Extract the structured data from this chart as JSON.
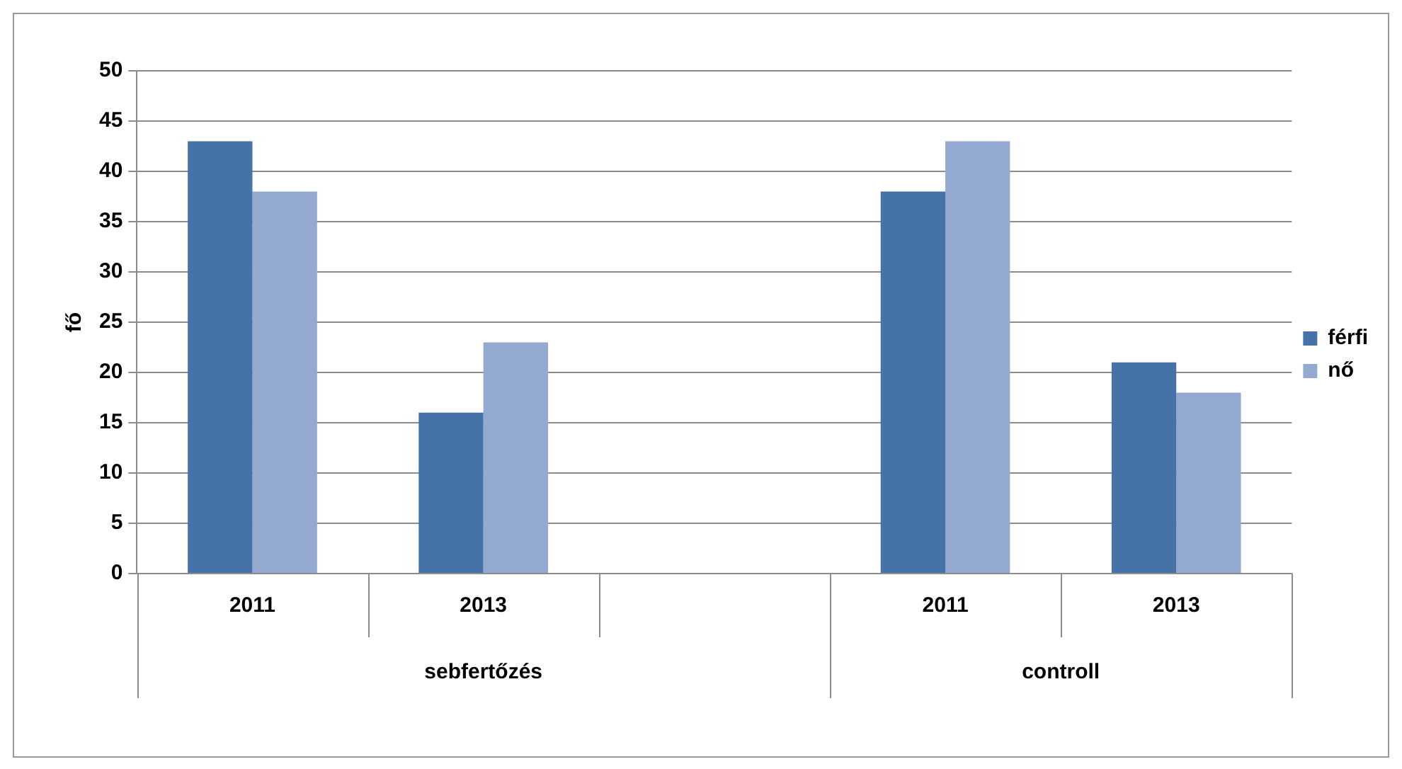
{
  "chart_data": {
    "type": "bar",
    "ylabel": "fő",
    "categories": [
      "2011",
      "2013",
      null,
      "2011",
      "2013"
    ],
    "series": [
      {
        "name": "férfi",
        "color": "#4572a7",
        "values": [
          43,
          16,
          null,
          38,
          21
        ]
      },
      {
        "name": "nő",
        "color": "#93a9cf",
        "values": [
          38,
          23,
          null,
          43,
          18
        ]
      }
    ],
    "annotations": [
      "sebfertőzés",
      "controll"
    ],
    "ylim": [
      0,
      50
    ],
    "yticks": [
      0,
      5,
      10,
      15,
      20,
      25,
      30,
      35,
      40,
      45,
      50
    ],
    "grid": "y",
    "legend": "right"
  }
}
